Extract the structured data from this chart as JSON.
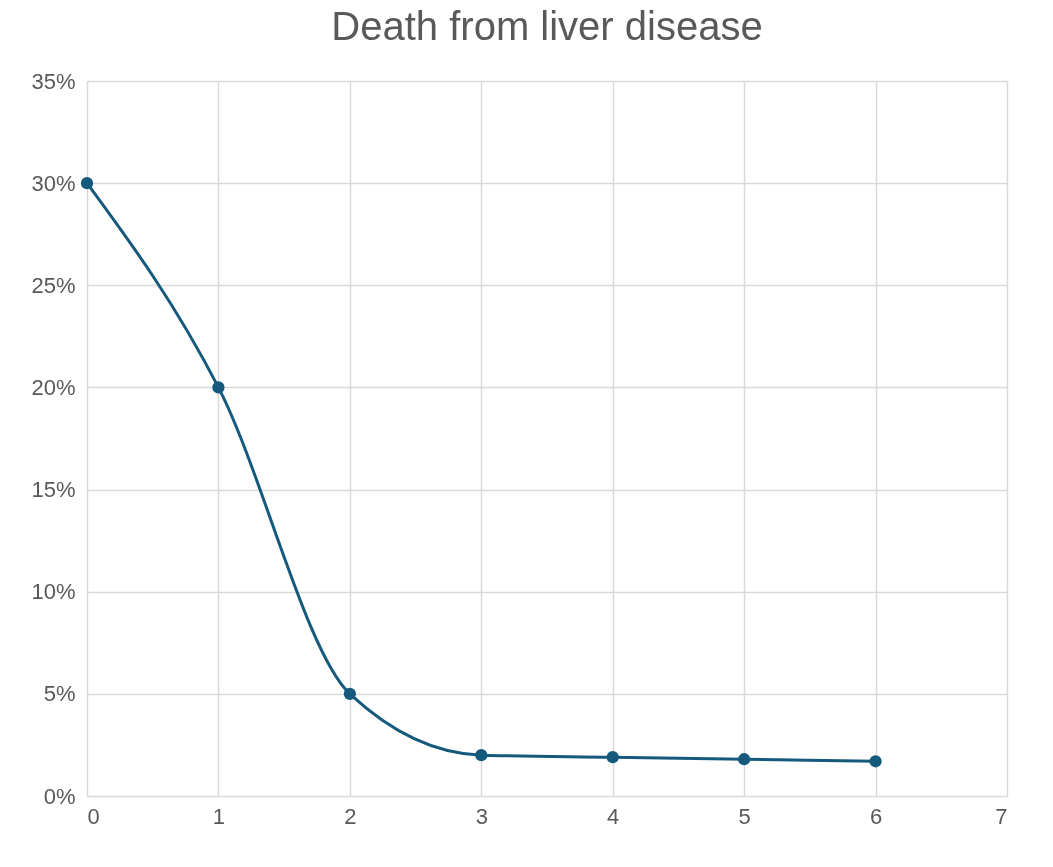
{
  "chart_data": {
    "type": "line",
    "title": "Death from liver disease",
    "x": [
      0,
      1,
      2,
      3,
      4,
      5,
      6
    ],
    "series": [
      {
        "color": "#155a7c",
        "values": [
          30,
          20,
          5,
          2,
          1.9,
          1.8,
          1.7
        ]
      }
    ],
    "xlim": [
      0,
      7
    ],
    "xticks": [
      0,
      1,
      2,
      3,
      4,
      5,
      6,
      7
    ],
    "ylim": [
      0,
      35
    ],
    "yticks": [
      {
        "value": 0,
        "label": "0%"
      },
      {
        "value": 5,
        "label": "5%"
      },
      {
        "value": 10,
        "label": "10%"
      },
      {
        "value": 15,
        "label": "15%"
      },
      {
        "value": 20,
        "label": "20%"
      },
      {
        "value": 25,
        "label": "25%"
      },
      {
        "value": 30,
        "label": "30%"
      },
      {
        "value": 35,
        "label": "35%"
      }
    ],
    "grid": true,
    "marker": "circle",
    "line_style": "solid"
  }
}
